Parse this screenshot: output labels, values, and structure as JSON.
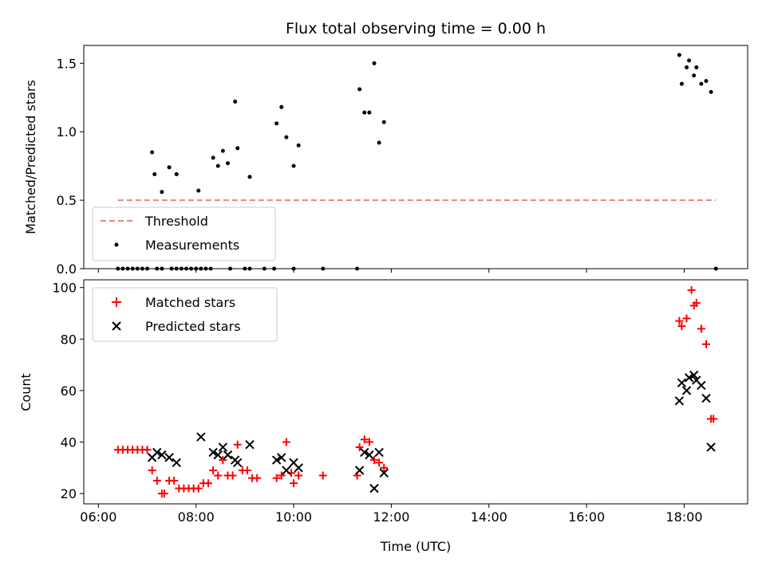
{
  "chart_data": [
    {
      "type": "scatter",
      "title": "Flux total observing time = 0.00 h",
      "xlabel": "",
      "ylabel": "Matched/Predicted stars",
      "xlim_hours": [
        5.7,
        19.3
      ],
      "ylim": [
        0,
        1.63
      ],
      "yticks": [
        0.0,
        0.5,
        1.0,
        1.5
      ],
      "ytick_labels": [
        "0.0",
        "0.5",
        "1.0",
        "1.5"
      ],
      "legend_position": "lower-left",
      "grid": false,
      "threshold": {
        "name": "Threshold",
        "value": 0.5,
        "x_range": [
          6.4,
          18.65
        ],
        "color": "#f08080"
      },
      "series": [
        {
          "name": "Measurements",
          "color": "#000000",
          "x": [
            6.4,
            6.5,
            6.6,
            6.7,
            6.8,
            6.9,
            7.0,
            7.2,
            7.3,
            7.5,
            7.6,
            7.7,
            7.8,
            7.9,
            8.0,
            8.1,
            8.2,
            8.3,
            8.7,
            9.0,
            9.1,
            9.4,
            9.6,
            10.0,
            10.6,
            11.3,
            18.65,
            7.1,
            7.15,
            7.3,
            7.45,
            7.6,
            8.05,
            8.35,
            8.45,
            8.55,
            8.65,
            8.8,
            8.85,
            9.1,
            9.65,
            9.75,
            9.85,
            10.0,
            10.1,
            11.35,
            11.45,
            11.55,
            11.65,
            11.75,
            11.85,
            17.9,
            17.95,
            18.05,
            18.1,
            18.2,
            18.25,
            18.35,
            18.45,
            18.55
          ],
          "y": [
            0,
            0,
            0,
            0,
            0,
            0,
            0,
            0,
            0,
            0,
            0,
            0,
            0,
            0,
            0,
            0,
            0,
            0,
            0,
            0,
            0,
            0,
            0,
            0,
            0,
            0,
            0,
            0.85,
            0.69,
            0.56,
            0.74,
            0.69,
            0.57,
            0.81,
            0.75,
            0.86,
            0.77,
            1.22,
            0.88,
            0.67,
            1.06,
            1.18,
            0.96,
            0.75,
            0.9,
            1.31,
            1.14,
            1.14,
            1.5,
            0.92,
            1.07,
            1.56,
            1.35,
            1.47,
            1.52,
            1.41,
            1.47,
            1.35,
            1.37,
            1.29
          ]
        }
      ]
    },
    {
      "type": "scatter",
      "title": "",
      "xlabel": "Time (UTC)",
      "ylabel": "Count",
      "xlim_hours": [
        5.7,
        19.3
      ],
      "xticks_hours": [
        6,
        8,
        10,
        12,
        14,
        16,
        18
      ],
      "xtick_labels": [
        "06:00",
        "08:00",
        "10:00",
        "12:00",
        "14:00",
        "16:00",
        "18:00"
      ],
      "ylim": [
        16,
        103
      ],
      "yticks": [
        20,
        40,
        60,
        80,
        100
      ],
      "ytick_labels": [
        "20",
        "40",
        "60",
        "80",
        "100"
      ],
      "legend_position": "upper-left",
      "grid": false,
      "series": [
        {
          "name": "Matched stars",
          "marker": "plus",
          "color": "#ff0000",
          "x": [
            6.4,
            6.5,
            6.6,
            6.7,
            6.8,
            6.9,
            7.0,
            7.1,
            7.2,
            7.3,
            7.35,
            7.45,
            7.55,
            7.65,
            7.75,
            7.85,
            7.95,
            8.05,
            8.15,
            8.25,
            8.35,
            8.45,
            8.55,
            8.65,
            8.75,
            8.85,
            8.95,
            9.05,
            9.15,
            9.25,
            9.65,
            9.75,
            9.85,
            9.95,
            10.0,
            10.1,
            10.6,
            11.3,
            11.35,
            11.45,
            11.55,
            11.65,
            11.75,
            11.85,
            17.9,
            17.95,
            18.05,
            18.15,
            18.2,
            18.25,
            18.35,
            18.45,
            18.55,
            18.6
          ],
          "y": [
            37,
            37,
            37,
            37,
            37,
            37,
            37,
            29,
            25,
            20,
            20,
            25,
            25,
            22,
            22,
            22,
            22,
            22,
            24,
            24,
            29,
            27,
            33,
            27,
            27,
            39,
            29,
            29,
            26,
            26,
            26,
            27,
            40,
            28,
            24,
            27,
            27,
            27,
            38,
            41,
            40,
            33,
            32,
            30,
            87,
            85,
            88,
            99,
            93,
            94,
            84,
            78,
            49,
            49
          ]
        },
        {
          "name": "Predicted stars",
          "marker": "x",
          "color": "#000000",
          "x": [
            7.1,
            7.2,
            7.3,
            7.45,
            7.6,
            8.1,
            8.35,
            8.45,
            8.55,
            8.65,
            8.8,
            8.85,
            9.1,
            9.65,
            9.75,
            9.85,
            10.0,
            10.1,
            11.35,
            11.45,
            11.55,
            11.65,
            11.75,
            11.85,
            17.9,
            17.95,
            18.05,
            18.1,
            18.2,
            18.25,
            18.35,
            18.45,
            18.55
          ],
          "y": [
            34,
            36,
            35,
            34,
            32,
            42,
            36,
            35,
            38,
            35,
            33,
            32,
            39,
            33,
            34,
            29,
            32,
            30,
            29,
            36,
            35,
            22,
            36,
            28,
            56,
            63,
            60,
            65,
            66,
            64,
            62,
            57,
            38
          ]
        }
      ]
    }
  ]
}
